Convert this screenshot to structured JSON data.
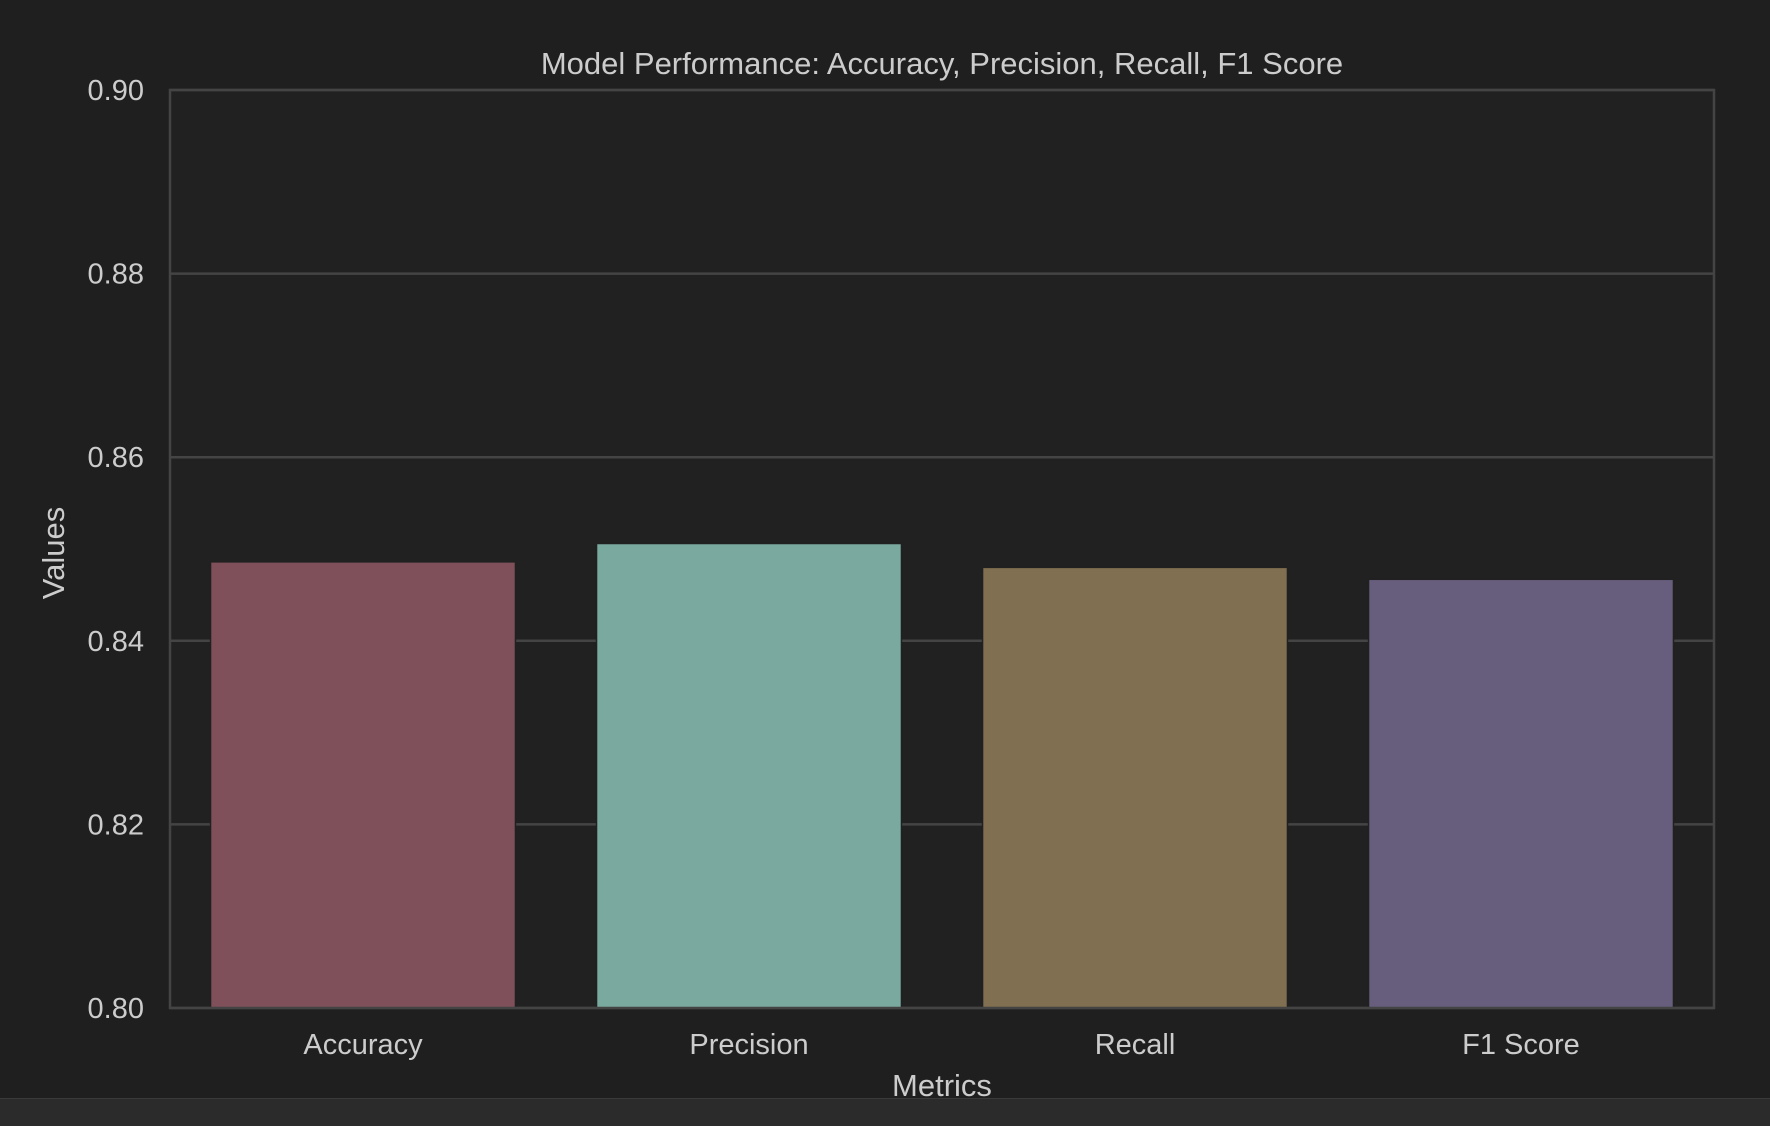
{
  "chart_data": {
    "type": "bar",
    "title": "Model Performance: Accuracy, Precision, Recall, F1 Score",
    "xlabel": "Metrics",
    "ylabel": "Values",
    "categories": [
      "Accuracy",
      "Precision",
      "Recall",
      "F1 Score"
    ],
    "values": [
      0.8486,
      0.8506,
      0.848,
      0.8467
    ],
    "colors": [
      "#7f505a",
      "#7aa99f",
      "#806f50",
      "#675e7d"
    ],
    "ylim": [
      0.8,
      0.9
    ],
    "yticks": [
      "0.80",
      "0.82",
      "0.84",
      "0.86",
      "0.88",
      "0.90"
    ],
    "grid": true,
    "legend": "none"
  },
  "theme": {
    "background": "#1f1f1f",
    "plot_background": "#212121",
    "grid_color": "#444444",
    "text_color": "#cccccc"
  }
}
